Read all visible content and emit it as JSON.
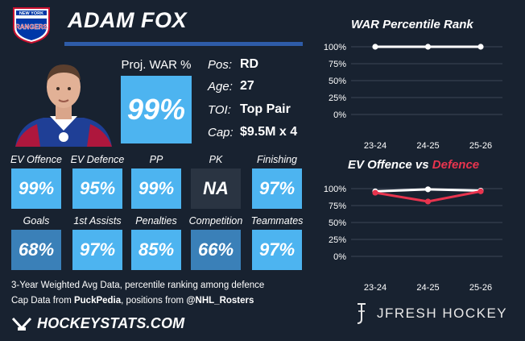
{
  "player": {
    "name": "ADAM FOX",
    "team_logo_text": {
      "line1": "NEW YORK",
      "line2": "RANGERS"
    },
    "proj_war_label": "Proj. WAR %",
    "proj_war_value": "99%",
    "info": [
      {
        "label": "Pos:",
        "value": "RD"
      },
      {
        "label": "Age:",
        "value": "27"
      },
      {
        "label": "TOI:",
        "value": "Top Pair"
      },
      {
        "label": "Cap:",
        "value": "$9.5M x 4"
      }
    ]
  },
  "stats_row1": [
    {
      "label": "EV Offence",
      "value": "99%",
      "color": "#4db4f0"
    },
    {
      "label": "EV Defence",
      "value": "95%",
      "color": "#4db4f0"
    },
    {
      "label": "PP",
      "value": "99%",
      "color": "#4db4f0"
    },
    {
      "label": "PK",
      "value": "NA",
      "color": "#2a3442"
    },
    {
      "label": "Finishing",
      "value": "97%",
      "color": "#4db4f0"
    }
  ],
  "stats_row2": [
    {
      "label": "Goals",
      "value": "68%",
      "color": "#3a80b8"
    },
    {
      "label": "1st Assists",
      "value": "97%",
      "color": "#4db4f0"
    },
    {
      "label": "Penalties",
      "value": "85%",
      "color": "#4db4f0"
    },
    {
      "label": "Competition",
      "value": "66%",
      "color": "#3a80b8"
    },
    {
      "label": "Teammates",
      "value": "97%",
      "color": "#4db4f0"
    }
  ],
  "notes": {
    "line1": "3-Year Weighted Avg Data, percentile ranking among defence",
    "line2_a": "Cap Data from ",
    "line2_b": "PuckPedia",
    "line2_c": ", positions from ",
    "line2_d": "@NHL_Rosters"
  },
  "brand": "HOCKEYSTATS.COM",
  "watermark": "JFRESH HOCKEY",
  "chart_data": [
    {
      "type": "line",
      "title": "WAR Percentile Rank",
      "categories": [
        "23-24",
        "24-25",
        "25-26"
      ],
      "yticks": [
        "100%",
        "75%",
        "50%",
        "25%",
        "0%"
      ],
      "ylim": [
        0,
        100
      ],
      "series": [
        {
          "values": [
            100,
            100,
            100
          ],
          "color": "#ffffff"
        }
      ]
    },
    {
      "type": "line",
      "title_part1": "EV Offence vs ",
      "title_part2": "Defence",
      "title_part2_color": "#e8344e",
      "categories": [
        "23-24",
        "24-25",
        "25-26"
      ],
      "yticks": [
        "100%",
        "75%",
        "50%",
        "25%",
        "0%"
      ],
      "ylim": [
        0,
        100
      ],
      "series": [
        {
          "values": [
            96,
            99,
            97
          ],
          "color": "#ffffff"
        },
        {
          "values": [
            94,
            81,
            96
          ],
          "color": "#e8344e"
        }
      ]
    }
  ]
}
